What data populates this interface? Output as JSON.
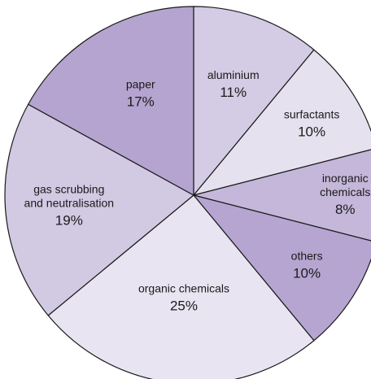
{
  "chart_data": {
    "type": "pie",
    "title": "",
    "start_angle_deg": 0,
    "direction": "clockwise",
    "slices": [
      {
        "name": "aluminium",
        "label_lines": [
          "aluminium"
        ],
        "value": 11,
        "value_label": "11%",
        "color": "#d4cbe4"
      },
      {
        "name": "surfactants",
        "label_lines": [
          "surfactants"
        ],
        "value": 10,
        "value_label": "10%",
        "color": "#e6e1ef"
      },
      {
        "name": "inorganic chemicals",
        "label_lines": [
          "inorganic",
          "chemicals"
        ],
        "value": 8,
        "value_label": "8%",
        "color": "#c4b7d9"
      },
      {
        "name": "others",
        "label_lines": [
          "others"
        ],
        "value": 10,
        "value_label": "10%",
        "color": "#b6a5d1"
      },
      {
        "name": "organic chemicals",
        "label_lines": [
          "organic chemicals"
        ],
        "value": 25,
        "value_label": "25%",
        "color": "#e8e4f1"
      },
      {
        "name": "gas scrubbing and neutralisation",
        "label_lines": [
          "gas scrubbing",
          "and neutralisation"
        ],
        "value": 19,
        "value_label": "19%",
        "color": "#d2c9e3"
      },
      {
        "name": "paper",
        "label_lines": [
          "paper"
        ],
        "value": 17,
        "value_label": "17%",
        "color": "#b4a4cf"
      }
    ]
  }
}
